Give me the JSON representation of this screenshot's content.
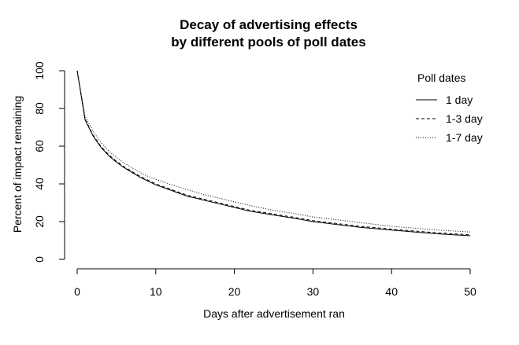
{
  "chart_data": {
    "type": "line",
    "title_line1": "Decay of advertising effects",
    "title_line2": "by different pools of poll dates",
    "xlabel": "Days after advertisement ran",
    "ylabel": "Percent of impact remaining",
    "xlim": [
      0,
      50
    ],
    "ylim": [
      0,
      100
    ],
    "xticks": [
      0,
      10,
      20,
      30,
      40,
      50
    ],
    "yticks": [
      0,
      20,
      40,
      60,
      80,
      100
    ],
    "grid": false,
    "legend_title": "Poll dates",
    "legend_position": "top-right",
    "x": [
      0,
      1,
      2,
      3,
      4,
      5,
      6,
      7,
      8,
      9,
      10,
      12,
      14,
      16,
      18,
      20,
      22,
      25,
      28,
      30,
      33,
      36,
      40,
      43,
      46,
      50
    ],
    "series": [
      {
        "name": "1 day",
        "line_style": "solid",
        "values": [
          100,
          74,
          65.5,
          59.5,
          55,
          51.5,
          48.5,
          46,
          43.5,
          41.5,
          39.5,
          36.5,
          33.5,
          31.5,
          29.5,
          27.5,
          25.5,
          23.5,
          21.5,
          20,
          18.5,
          17,
          15.5,
          14.5,
          13.5,
          12.5
        ]
      },
      {
        "name": "1-3 day",
        "line_style": "dashed",
        "values": [
          100,
          74.5,
          66,
          60,
          55.5,
          52,
          49,
          46.5,
          44,
          42,
          40,
          37,
          34,
          32,
          30,
          28,
          26,
          24,
          22,
          20.5,
          19,
          17.5,
          16,
          15,
          14,
          13
        ]
      },
      {
        "name": "1-7 day",
        "line_style": "dotted",
        "values": [
          100,
          76,
          68,
          62,
          57.5,
          54,
          51,
          48.5,
          46,
          44,
          42.5,
          39.5,
          37,
          34.5,
          32.5,
          30.5,
          28.5,
          26,
          24,
          22.5,
          21,
          19.5,
          17.5,
          16.5,
          15.5,
          14.5
        ]
      }
    ]
  }
}
